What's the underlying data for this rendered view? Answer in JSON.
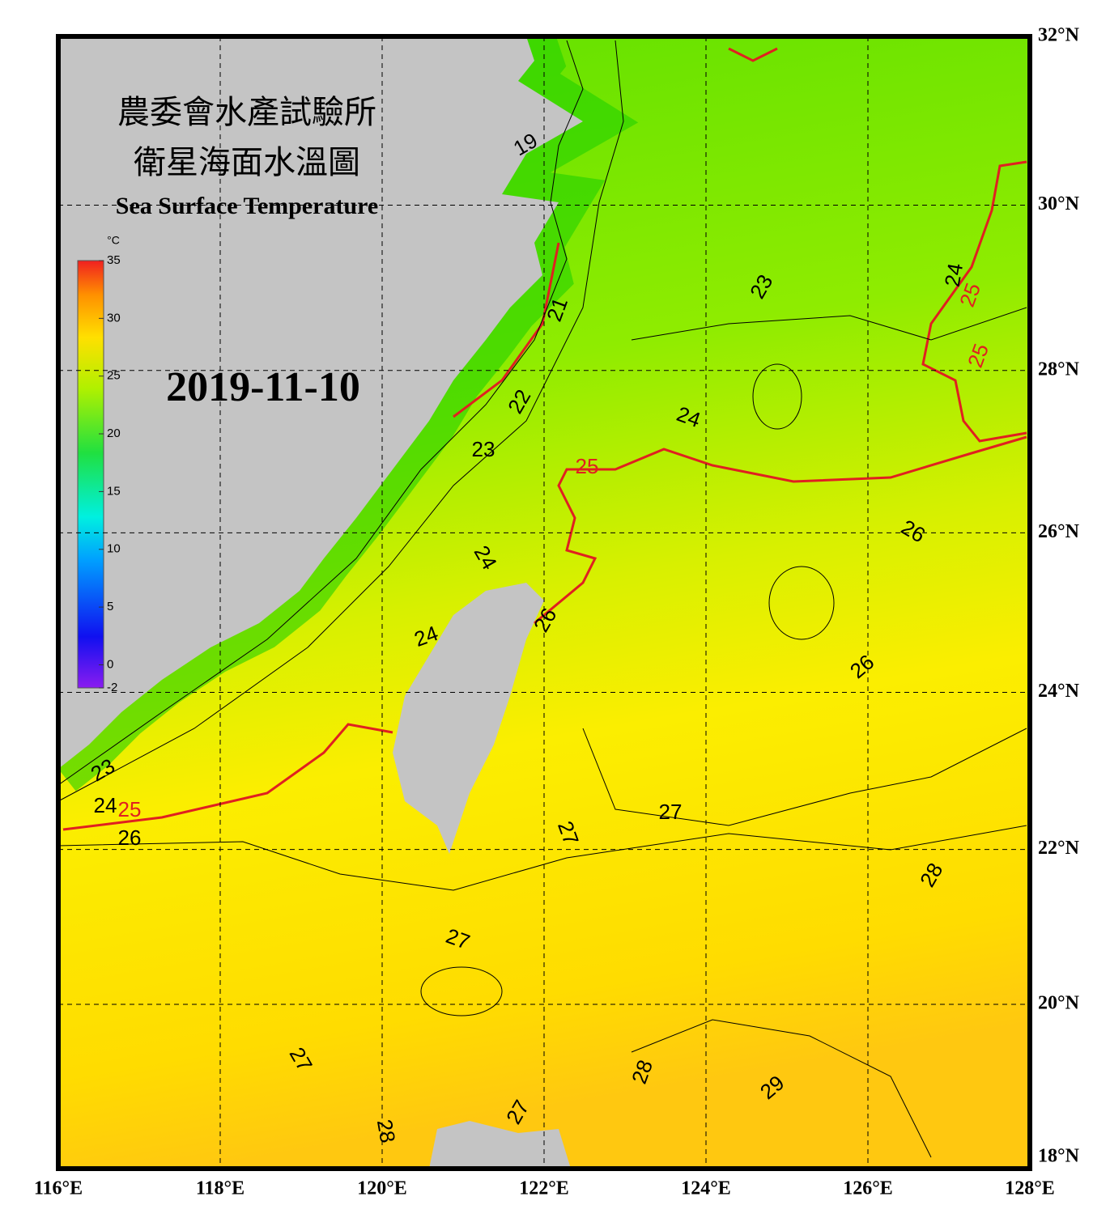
{
  "map": {
    "title_lines": [
      "農委會水產試驗所",
      "衛星海面水溫圖"
    ],
    "subtitle": "Sea Surface Temperature",
    "date": "2019-11-10",
    "xlim": [
      116,
      128
    ],
    "ylim": [
      18,
      32
    ],
    "xticks": [
      {
        "value": 116,
        "label": "116°E"
      },
      {
        "value": 118,
        "label": "118°E"
      },
      {
        "value": 120,
        "label": "120°E"
      },
      {
        "value": 122,
        "label": "122°E"
      },
      {
        "value": 124,
        "label": "124°E"
      },
      {
        "value": 126,
        "label": "126°E"
      },
      {
        "value": 128,
        "label": "128°E"
      }
    ],
    "yticks": [
      {
        "value": 18,
        "label": "18°N"
      },
      {
        "value": 20,
        "label": "20°N"
      },
      {
        "value": 22,
        "label": "22°N"
      },
      {
        "value": 24,
        "label": "24°N"
      },
      {
        "value": 26,
        "label": "26°N"
      },
      {
        "value": 28,
        "label": "28°N"
      },
      {
        "value": 30,
        "label": "30°N"
      },
      {
        "value": 32,
        "label": "32°N"
      }
    ],
    "colorbar": {
      "unit": "°C",
      "lim": [
        -2,
        35
      ],
      "ticks": [
        -2,
        0,
        5,
        10,
        15,
        20,
        25,
        30,
        35
      ]
    },
    "contour_labels": [
      19,
      21,
      22,
      23,
      24,
      25,
      24,
      26,
      24,
      23,
      24,
      25,
      25,
      26,
      26,
      27,
      27,
      28,
      27,
      27,
      28,
      29,
      27,
      28,
      23,
      24,
      25,
      26
    ]
  }
}
